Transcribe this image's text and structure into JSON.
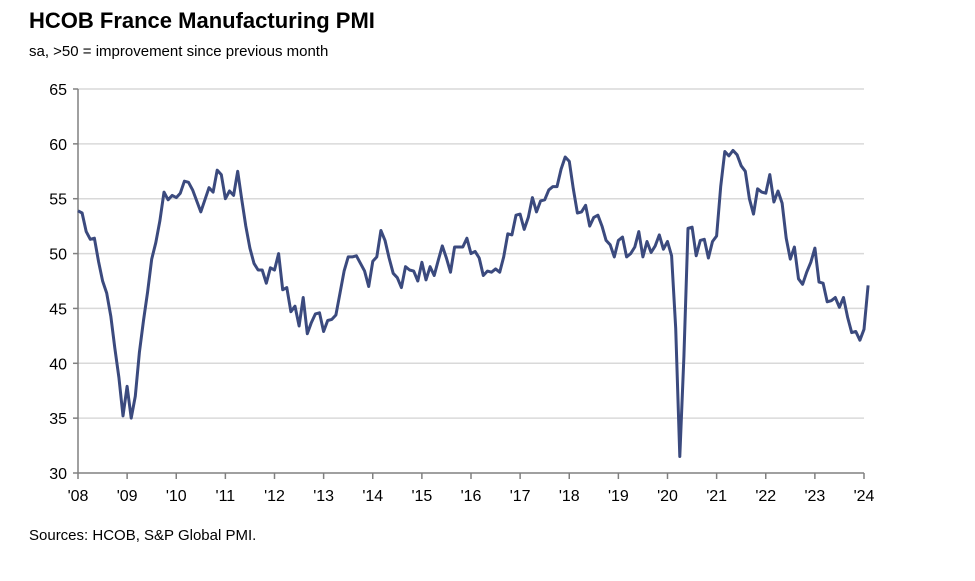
{
  "chart_data": {
    "type": "line",
    "title": "HCOB France Manufacturing PMI",
    "subtitle": "sa, >50 = improvement since previous month",
    "source": "Sources: HCOB, S&P Global PMI.",
    "xlabel": "",
    "ylabel": "",
    "ylim": [
      30,
      65
    ],
    "yticks": [
      "30",
      "35",
      "40",
      "45",
      "50",
      "55",
      "60",
      "65"
    ],
    "xticks": [
      "'08",
      "'09",
      "'10",
      "'11",
      "'12",
      "'13",
      "'14",
      "'15",
      "'16",
      "'17",
      "'18",
      "'19",
      "'20",
      "'21",
      "'22",
      "'23",
      "'24"
    ],
    "x_start": "2008-01",
    "x_end": "2024-02",
    "frequency": "monthly",
    "grid": "horizontal",
    "colors": {
      "line": "#3b4a7e",
      "grid": "#d9d9d9",
      "axis": "#808080"
    },
    "series": [
      {
        "values": [
          53.9,
          53.7,
          52.0,
          51.3,
          51.4,
          49.3,
          47.5,
          46.4,
          44.3,
          41.4,
          38.7,
          35.2,
          37.9,
          35.0,
          37.0,
          41.0,
          43.9,
          46.5,
          49.5,
          51.0,
          53.0,
          55.6,
          54.9,
          55.3,
          55.1,
          55.5,
          56.6,
          56.5,
          55.8,
          54.8,
          53.8,
          54.9,
          56.0,
          55.6,
          57.6,
          57.2,
          55.0,
          55.7,
          55.3,
          57.5,
          54.9,
          52.5,
          50.5,
          49.1,
          48.5,
          48.5,
          47.3,
          48.7,
          48.5,
          50.0,
          46.7,
          46.9,
          44.7,
          45.2,
          43.4,
          46.0,
          42.7,
          43.7,
          44.5,
          44.6,
          42.9,
          43.9,
          44.0,
          44.4,
          46.4,
          48.4,
          49.7,
          49.7,
          49.8,
          49.1,
          48.4,
          47.0,
          49.3,
          49.7,
          52.1,
          51.2,
          49.6,
          48.2,
          47.8,
          46.9,
          48.8,
          48.5,
          48.4,
          47.5,
          49.2,
          47.6,
          48.8,
          48.0,
          49.4,
          50.7,
          49.6,
          48.3,
          50.6,
          50.6,
          50.6,
          51.4,
          50.0,
          50.2,
          49.6,
          48.0,
          48.4,
          48.3,
          48.6,
          48.3,
          49.7,
          51.8,
          51.7,
          53.5,
          53.6,
          52.2,
          53.3,
          55.1,
          53.8,
          54.8,
          54.9,
          55.8,
          56.1,
          56.1,
          57.7,
          58.8,
          58.4,
          55.9,
          53.7,
          53.8,
          54.4,
          52.5,
          53.3,
          53.5,
          52.5,
          51.2,
          50.8,
          49.7,
          51.2,
          51.5,
          49.7,
          50.0,
          50.6,
          52.0,
          49.7,
          51.1,
          50.1,
          50.7,
          51.7,
          50.4,
          51.1,
          49.8,
          43.2,
          31.5,
          40.6,
          52.3,
          52.4,
          49.8,
          51.2,
          51.3,
          49.6,
          51.1,
          51.6,
          56.1,
          59.3,
          58.9,
          59.4,
          59.0,
          58.0,
          57.5,
          55.0,
          53.6,
          55.9,
          55.6,
          55.5,
          57.2,
          54.7,
          55.7,
          54.6,
          51.4,
          49.5,
          50.6,
          47.7,
          47.2,
          48.3,
          49.2,
          50.5,
          47.4,
          47.3,
          45.6,
          45.7,
          46.0,
          45.1,
          46.0,
          44.2,
          42.8,
          42.9,
          42.1,
          43.1,
          47.1
        ]
      }
    ]
  }
}
